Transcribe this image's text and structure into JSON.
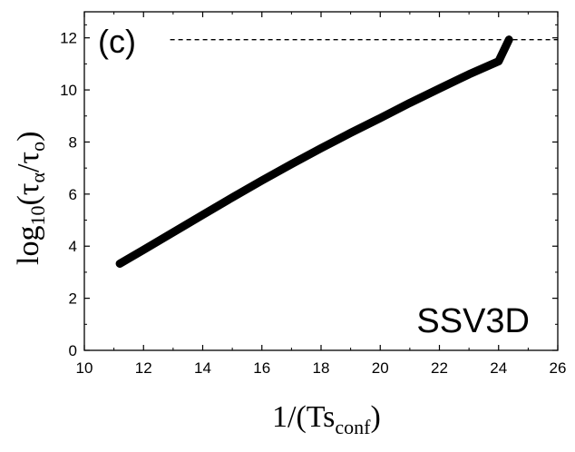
{
  "chart_data": {
    "type": "line",
    "panel_label": "(c)",
    "series_label": "SSV3D",
    "xlabel": {
      "main": "1/(Ts",
      "sub": "conf",
      "close": ")"
    },
    "ylabel": {
      "base": "log",
      "base_sub": "10",
      "open": "(τ",
      "num_sub": "α",
      "slash": "/τ",
      "den_sub": "o",
      "close": ")"
    },
    "xlim": [
      10,
      26
    ],
    "ylim": [
      0,
      13
    ],
    "x_ticks": [
      10,
      12,
      14,
      16,
      18,
      20,
      22,
      24,
      26
    ],
    "y_ticks": [
      0,
      2,
      4,
      6,
      8,
      10,
      12
    ],
    "grid": false,
    "reference_line": {
      "y": 11.93,
      "x_from": 12.9,
      "x_to": 26,
      "style": "dashed"
    },
    "series": [
      {
        "x": [
          11.2,
          12.0,
          13.0,
          14.0,
          15.0,
          16.0,
          17.0,
          18.0,
          19.0,
          20.0,
          21.0,
          22.0,
          23.0,
          24.0,
          24.35
        ],
        "y": [
          3.33,
          3.86,
          4.53,
          5.2,
          5.87,
          6.52,
          7.15,
          7.76,
          8.35,
          8.92,
          9.5,
          10.05,
          10.6,
          11.1,
          11.93
        ]
      }
    ]
  }
}
